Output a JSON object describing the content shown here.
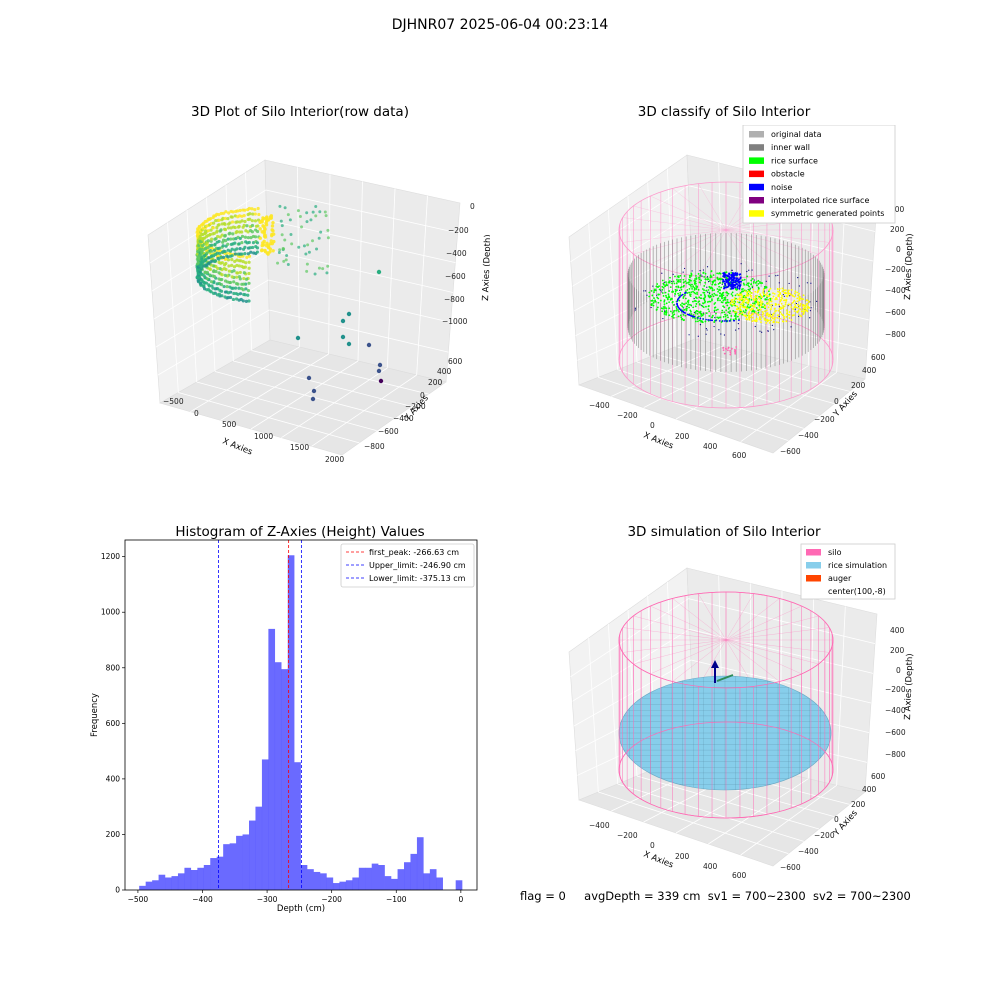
{
  "suptitle": "DJHNR07 2025-06-04 00:23:14",
  "panels": {
    "raw": {
      "title": "3D Plot of Silo Interior(row data)",
      "xlabel": "X Axies",
      "ylabel": "Y Axies",
      "zlabel": "Z Axies (Depth)",
      "xticks": [
        "−500",
        "0",
        "500",
        "1000",
        "1500",
        "2000"
      ],
      "yticks": [
        "−800",
        "−600",
        "−400",
        "−200",
        "0",
        "200",
        "400",
        "600"
      ],
      "zticks": [
        "−1000",
        "−800",
        "−600",
        "−400",
        "−200",
        "0"
      ]
    },
    "classify": {
      "title": "3D classify of Silo Interior",
      "xlabel": "X Axies",
      "ylabel": "Y Axies",
      "zlabel": "Z Axies (Depth)",
      "xticks": [
        "−400",
        "−200",
        "0",
        "200",
        "400",
        "600"
      ],
      "yticks": [
        "−600",
        "−400",
        "−200",
        "0",
        "200",
        "400",
        "600"
      ],
      "zticks": [
        "−800",
        "−600",
        "−400",
        "−200",
        "0",
        "200",
        "400"
      ],
      "legend": [
        {
          "label": "original data",
          "color": "#b0b0b0"
        },
        {
          "label": "inner wall",
          "color": "#808080"
        },
        {
          "label": "rice surface",
          "color": "#00ff00"
        },
        {
          "label": "obstacle",
          "color": "#ff0000"
        },
        {
          "label": "noise",
          "color": "#0000ff"
        },
        {
          "label": "interpolated rice surface",
          "color": "#800080"
        },
        {
          "label": "symmetric generated points",
          "color": "#ffff00"
        }
      ]
    },
    "histogram": {
      "title": "Histogram of Z-Axies (Height) Values",
      "xlabel": "Depth (cm)",
      "ylabel": "Frequency",
      "bar_color": "#5050ff",
      "legend": [
        {
          "label": "first_peak: -266.63 cm",
          "color": "#ff0000"
        },
        {
          "label": "Upper_limit: -246.90 cm",
          "color": "#0000ff"
        },
        {
          "label": "Lower_limit: -375.13 cm",
          "color": "#0000ff"
        }
      ]
    },
    "simulation": {
      "title": "3D simulation of Silo Interior",
      "xlabel": "X Axies",
      "ylabel": "Y Axies",
      "zlabel": "Z Axies (Depth)",
      "xticks": [
        "−400",
        "−200",
        "0",
        "200",
        "400",
        "600"
      ],
      "yticks": [
        "−600",
        "−400",
        "−200",
        "0",
        "200",
        "400",
        "600"
      ],
      "zticks": [
        "−800",
        "−600",
        "−400",
        "−200",
        "0",
        "200",
        "400"
      ],
      "legend": [
        {
          "label": "silo",
          "color": "#ff69b4"
        },
        {
          "label": "rice simulation",
          "color": "#87ceeb"
        },
        {
          "label": "auger",
          "color": "#ff4500"
        },
        {
          "label": "center(100,-8)",
          "color": "#ffffff"
        }
      ]
    }
  },
  "status": {
    "flag": "flag = 0",
    "avg_depth": "avgDepth = 339 cm",
    "sv1": "sv1 = 700~2300",
    "sv2": "sv2 = 700~2300"
  },
  "chart_data": [
    {
      "type": "scatter",
      "title": "3D Plot of Silo Interior(row data)",
      "xlabel": "X Axies",
      "ylabel": "Y Axies",
      "zlabel": "Z Axies (Depth)",
      "xlim": [
        -600,
        2000
      ],
      "ylim": [
        -850,
        650
      ],
      "zlim": [
        -1100,
        50
      ]
    },
    {
      "type": "scatter",
      "title": "3D classify of Silo Interior",
      "xlabel": "X Axies",
      "ylabel": "Y Axies",
      "zlabel": "Z Axies (Depth)",
      "xlim": [
        -500,
        700
      ],
      "ylim": [
        -650,
        650
      ],
      "zlim": [
        -850,
        450
      ],
      "series": [
        {
          "name": "original data"
        },
        {
          "name": "inner wall"
        },
        {
          "name": "rice surface"
        },
        {
          "name": "obstacle"
        },
        {
          "name": "noise"
        },
        {
          "name": "interpolated rice surface"
        },
        {
          "name": "symmetric generated points"
        }
      ]
    },
    {
      "type": "bar",
      "title": "Histogram of Z-Axies (Height) Values",
      "xlabel": "Depth (cm)",
      "ylabel": "Frequency",
      "xlim": [
        -520,
        25
      ],
      "ylim": [
        0,
        1260
      ],
      "xticks": [
        -500,
        -400,
        -300,
        -200,
        -100,
        0
      ],
      "yticks": [
        0,
        200,
        400,
        600,
        800,
        1000,
        1200
      ],
      "bin_width": 10,
      "bins": [
        [
          -493,
          15
        ],
        [
          -483,
          30
        ],
        [
          -473,
          35
        ],
        [
          -463,
          55
        ],
        [
          -453,
          45
        ],
        [
          -443,
          50
        ],
        [
          -433,
          60
        ],
        [
          -423,
          80
        ],
        [
          -413,
          72
        ],
        [
          -403,
          80
        ],
        [
          -393,
          90
        ],
        [
          -383,
          115
        ],
        [
          -373,
          120
        ],
        [
          -363,
          165
        ],
        [
          -353,
          168
        ],
        [
          -343,
          195
        ],
        [
          -333,
          200
        ],
        [
          -323,
          250
        ],
        [
          -313,
          300
        ],
        [
          -303,
          470
        ],
        [
          -293,
          940
        ],
        [
          -283,
          820
        ],
        [
          -273,
          795
        ],
        [
          -263,
          1205
        ],
        [
          -253,
          460
        ],
        [
          -243,
          90
        ],
        [
          -233,
          75
        ],
        [
          -223,
          65
        ],
        [
          -213,
          60
        ],
        [
          -203,
          45
        ],
        [
          -193,
          25
        ],
        [
          -183,
          30
        ],
        [
          -173,
          35
        ],
        [
          -163,
          45
        ],
        [
          -153,
          80
        ],
        [
          -143,
          80
        ],
        [
          -133,
          95
        ],
        [
          -123,
          90
        ],
        [
          -113,
          50
        ],
        [
          -103,
          40
        ],
        [
          -93,
          75
        ],
        [
          -83,
          100
        ],
        [
          -73,
          130
        ],
        [
          -63,
          190
        ],
        [
          -53,
          60
        ],
        [
          -43,
          75
        ],
        [
          -33,
          45
        ],
        [
          -23,
          0
        ],
        [
          -13,
          0
        ],
        [
          -3,
          35
        ]
      ],
      "lines": [
        {
          "name": "first_peak: -266.63 cm",
          "x": -266.63
        },
        {
          "name": "Upper_limit: -246.90 cm",
          "x": -246.9
        },
        {
          "name": "Lower_limit: -375.13 cm",
          "x": -375.13
        }
      ],
      "legend_position": "top-right"
    },
    {
      "type": "scatter",
      "title": "3D simulation of Silo Interior",
      "xlabel": "X Axies",
      "ylabel": "Y Axies",
      "zlabel": "Z Axies (Depth)",
      "xlim": [
        -500,
        700
      ],
      "ylim": [
        -650,
        650
      ],
      "zlim": [
        -850,
        450
      ],
      "series": [
        {
          "name": "silo"
        },
        {
          "name": "rice simulation"
        },
        {
          "name": "auger"
        },
        {
          "name": "center(100,-8)"
        }
      ]
    }
  ]
}
